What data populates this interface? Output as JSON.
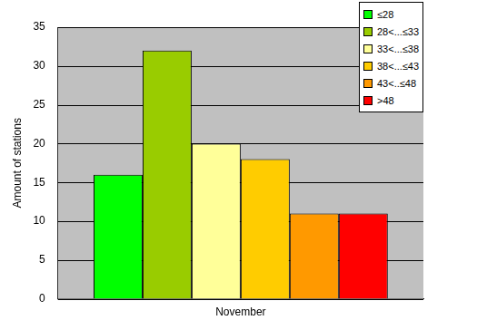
{
  "chart_data": {
    "type": "bar",
    "categories": [
      "November"
    ],
    "y_label": "Amount of stations",
    "series": [
      {
        "name": "≤28",
        "color": "#00ff00",
        "values": [
          16
        ]
      },
      {
        "name": "28<...≤33",
        "color": "#99cc00",
        "values": [
          32
        ]
      },
      {
        "name": "33<...≤38",
        "color": "#ffff99",
        "values": [
          20
        ]
      },
      {
        "name": "38<...≤43",
        "color": "#ffcc00",
        "values": [
          18
        ]
      },
      {
        "name": "43<..≤48",
        "color": "#ff9900",
        "values": [
          11
        ]
      },
      {
        "name": ">48",
        "color": "#ff0000",
        "values": [
          11
        ]
      }
    ],
    "ylim": [
      0,
      35
    ],
    "yticks": [
      0,
      5,
      10,
      15,
      20,
      25,
      30,
      35
    ],
    "grid": true,
    "legend": "top-right"
  }
}
